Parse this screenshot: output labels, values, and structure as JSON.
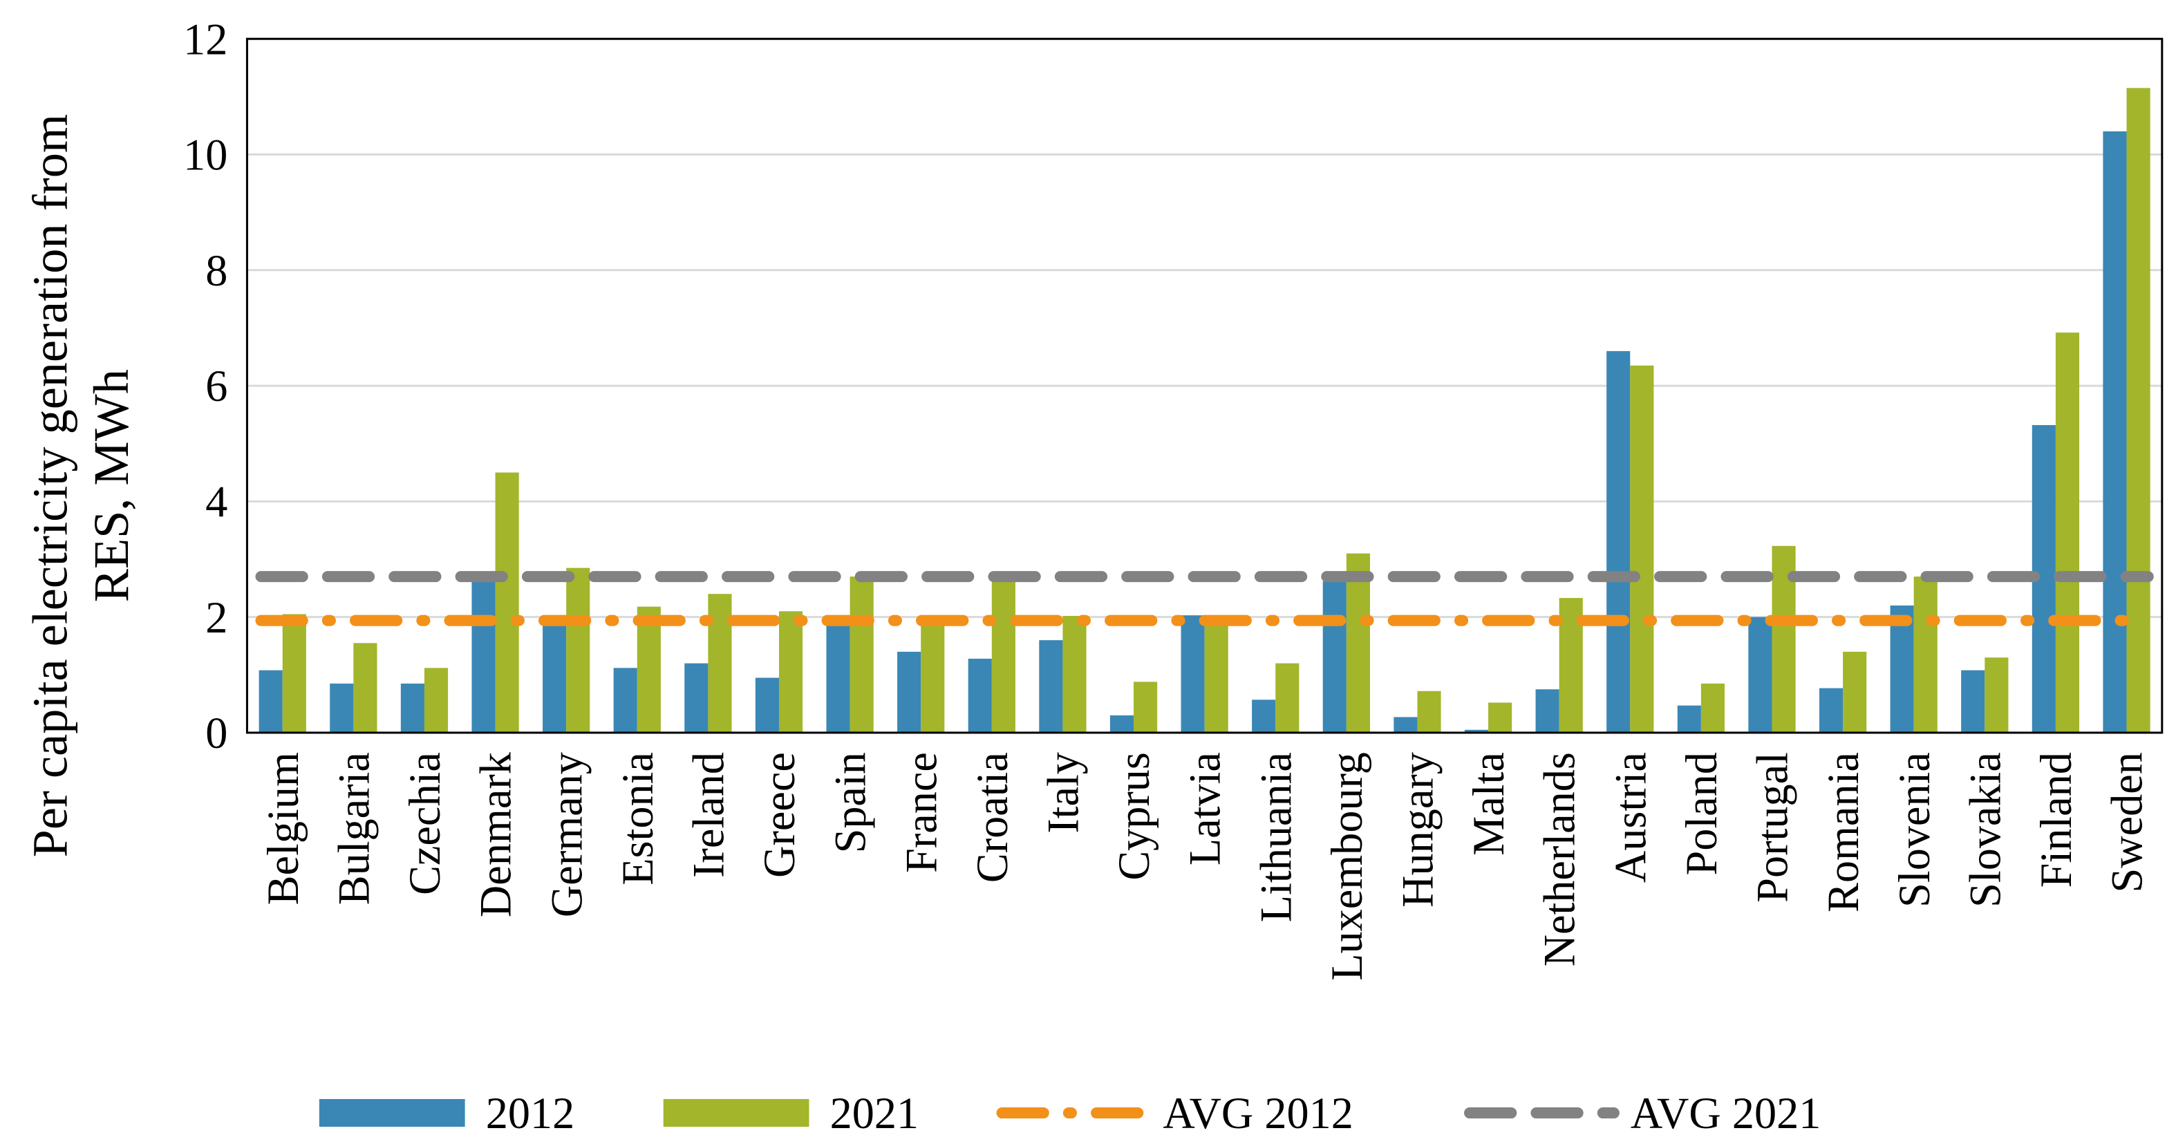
{
  "chart_data": {
    "type": "bar",
    "y_label": [
      "Per capita electricity generation from",
      "RES, MWh"
    ],
    "categories": [
      "Belgium",
      "Bulgaria",
      "Czechia",
      "Denmark",
      "Germany",
      "Estonia",
      "Ireland",
      "Greece",
      "Spain",
      "France",
      "Croatia",
      "Italy",
      "Cyprus",
      "Latvia",
      "Lithuania",
      "Luxembourg",
      "Hungary",
      "Malta",
      "Netherlands",
      "Austria",
      "Poland",
      "Portugal",
      "Romania",
      "Slovenia",
      "Slovakia",
      "Finland",
      "Sweden"
    ],
    "series": [
      {
        "name": "2012",
        "color": "#3a87b6",
        "values": [
          1.08,
          0.85,
          0.85,
          2.65,
          1.87,
          1.12,
          1.2,
          0.95,
          1.95,
          1.4,
          1.28,
          1.6,
          0.3,
          2.03,
          0.57,
          2.62,
          0.27,
          0.05,
          0.75,
          6.6,
          0.47,
          2.0,
          0.77,
          2.2,
          1.08,
          5.32,
          10.4
        ]
      },
      {
        "name": "2021",
        "color": "#a3b52a",
        "values": [
          2.05,
          1.55,
          1.12,
          4.5,
          2.85,
          2.18,
          2.4,
          2.1,
          2.7,
          1.9,
          2.65,
          2.02,
          0.88,
          1.98,
          1.2,
          3.1,
          0.72,
          0.52,
          2.33,
          6.35,
          0.85,
          3.23,
          1.4,
          2.7,
          1.3,
          6.92,
          11.15
        ]
      }
    ],
    "average_lines": [
      {
        "name": "AVG 2012",
        "color": "#f39019",
        "value": 1.94,
        "dash": "dash-dot"
      },
      {
        "name": "AVG 2021",
        "color": "#828282",
        "value": 2.7,
        "dash": "dash"
      }
    ],
    "ylim": [
      0,
      12
    ],
    "yticks": [
      0,
      2,
      4,
      6,
      8,
      10,
      12
    ],
    "grid": true,
    "legend": "bottom"
  }
}
